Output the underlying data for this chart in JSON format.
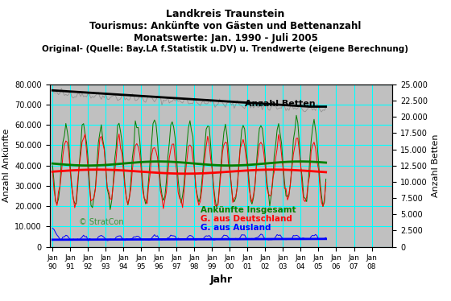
{
  "title_line1": "Landkreis Traunstein",
  "title_line2": "Tourismus: Ankünfte von Gästen und Bettenanzahl",
  "title_line3": "Monatswerte: Jan. 1990 - Juli 2005",
  "title_line4": "Original- (Quelle: Bay.LA f.Statistik u.DV) u. Trendwerte (eigene Berechnung)",
  "xlabel": "Jahr",
  "ylabel_left": "Anzahl Ankünfte",
  "ylabel_right": "Anzahl Betten",
  "ylim_left": [
    0,
    80000
  ],
  "ylim_right": [
    0,
    25000
  ],
  "yticks_left": [
    0,
    10000,
    20000,
    30000,
    40000,
    50000,
    60000,
    70000,
    80000
  ],
  "ytick_labels_left": [
    "0",
    "10.000",
    "20.000",
    "30.000",
    "40.000",
    "50.000",
    "60.000",
    "70.000",
    "80.000"
  ],
  "yticks_right": [
    0,
    2500,
    5000,
    7500,
    10000,
    12500,
    15000,
    17500,
    20000,
    22500,
    25000
  ],
  "ytick_labels_right": [
    "0",
    "2.500",
    "5.000",
    "7.500",
    "10.000",
    "12.500",
    "15.000",
    "17.500",
    "20.000",
    "22.500",
    "25.000"
  ],
  "xtick_labels": [
    "Jan\n90",
    "Jan\n91",
    "Jan\n92",
    "Jan\n93",
    "Jan\n94",
    "Jan\n95",
    "Jan\n96",
    "Jan\n97",
    "Jan\n98",
    "Jan\n99",
    "Jan\n00",
    "Jan\n01",
    "Jan\n02",
    "Jan\n03",
    "Jan\n04",
    "Jan\n05",
    "Jan\n06",
    "Jan\n07",
    "Jan\n08"
  ],
  "background_color": "#c0c0c0",
  "plot_bg_color": "#c0c0c0",
  "fig_bg_color": "#ffffff",
  "grid_color": "#00ffff",
  "label_ankuenfte": "Ankünfte Insgesamt",
  "label_deutschland": "G. aus Deutschland",
  "label_ausland": "G. aus Ausland",
  "label_betten": "Anzahl Betten",
  "watermark": "© StratCon",
  "color_total_raw": "#008000",
  "color_total_trend": "#008000",
  "color_de_raw": "#ff0000",
  "color_de_trend": "#ff0000",
  "color_ausland_raw": "#0000ff",
  "color_ausland_trend": "#0000ff",
  "color_betten_raw": "#808080",
  "color_betten_trend": "#000000",
  "n_years": 19,
  "start_year": 1990
}
